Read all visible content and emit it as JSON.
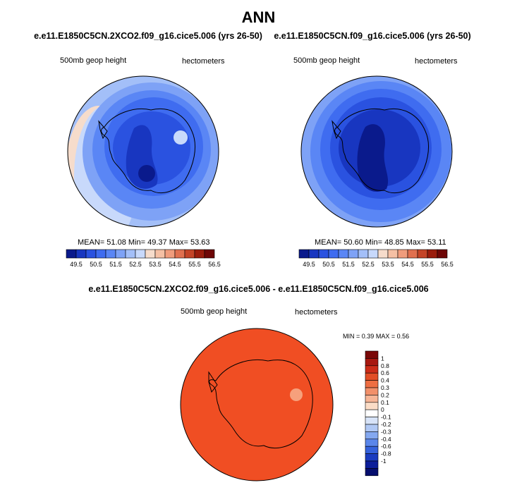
{
  "title": "ANN",
  "panels": [
    {
      "case": "e.e11.E1850C5CN.2XCO2.f09_g16.cice5.006 (yrs 26-50)",
      "field": "500mb geop height",
      "units": "hectometers",
      "stats": {
        "mean_label": "MEAN=",
        "mean": "51.08",
        "min_label": "Min=",
        "min": "49.37",
        "max_label": "Max=",
        "max": "53.63"
      },
      "colorbar": {
        "colors": [
          "#0a1a8c",
          "#1836c0",
          "#2a52e0",
          "#3f6cf0",
          "#5a86f5",
          "#7ea2f6",
          "#a3bff8",
          "#c8d9fb",
          "#f6dccb",
          "#f5c0a4",
          "#f09c7c",
          "#e0704f",
          "#c44427",
          "#9a1c0c",
          "#6e0606"
        ],
        "tick_labels": [
          "49.5",
          "50.5",
          "51.5",
          "52.5",
          "53.5",
          "54.5",
          "55.5",
          "56.5"
        ]
      }
    },
    {
      "case": "e.e11.E1850C5CN.f09_g16.cice5.006 (yrs 26-50)",
      "field": "500mb geop height",
      "units": "hectometers",
      "stats": {
        "mean_label": "MEAN=",
        "mean": "50.60",
        "min_label": "Min=",
        "min": "48.85",
        "max_label": "Max=",
        "max": "53.11"
      },
      "colorbar": {
        "colors": [
          "#0a1a8c",
          "#1836c0",
          "#2a52e0",
          "#3f6cf0",
          "#5a86f5",
          "#7ea2f6",
          "#a3bff8",
          "#c8d9fb",
          "#f6dccb",
          "#f5c0a4",
          "#f09c7c",
          "#e0704f",
          "#c44427",
          "#9a1c0c",
          "#6e0606"
        ],
        "tick_labels": [
          "49.5",
          "50.5",
          "51.5",
          "52.5",
          "53.5",
          "54.5",
          "55.5",
          "56.5"
        ]
      }
    }
  ],
  "diff": {
    "case": "e.e11.E1850C5CN.2XCO2.f09_g16.cice5.006 - e.e11.E1850C5CN.f09_g16.cice5.006",
    "field": "500mb geop height",
    "units": "hectometers",
    "stats": {
      "min_label": "MIN =",
      "min": "0.39",
      "max_label": "MAX =",
      "max": "0.56"
    },
    "fill_color": "#f04e23",
    "colorbar": {
      "colors": [
        "#7a0808",
        "#a81810",
        "#cc2c18",
        "#e24e26",
        "#ee6e42",
        "#f2906a",
        "#f6b596",
        "#fbdcc6",
        "#ffffff",
        "#d7e3f8",
        "#b0c8f4",
        "#84a8f0",
        "#5a86ea",
        "#3562dc",
        "#1a3cc0",
        "#0c1e9a",
        "#050e6e"
      ],
      "tick_labels": [
        "1",
        "0.8",
        "0.6",
        "0.4",
        "0.3",
        "0.2",
        "0.1",
        "0",
        "-0.1",
        "-0.2",
        "-0.3",
        "-0.4",
        "-0.6",
        "-0.8",
        "-1"
      ]
    }
  }
}
